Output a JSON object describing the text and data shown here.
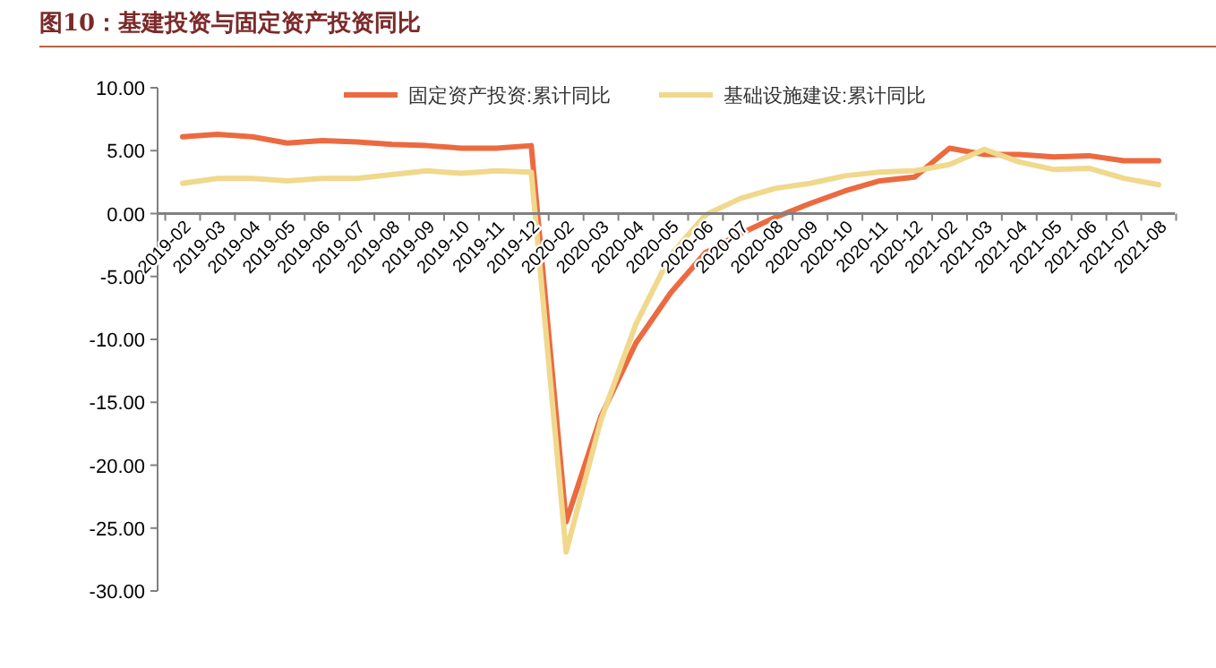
{
  "chart_data": {
    "type": "line",
    "title": "图10：基建投资与固定资产投资同比",
    "categories": [
      "2019-02",
      "2019-03",
      "2019-04",
      "2019-05",
      "2019-06",
      "2019-07",
      "2019-08",
      "2019-09",
      "2019-10",
      "2019-11",
      "2019-12",
      "2020-02",
      "2020-03",
      "2020-04",
      "2020-05",
      "2020-06",
      "2020-07",
      "2020-08",
      "2020-09",
      "2020-10",
      "2020-11",
      "2020-12",
      "2021-02",
      "2021-03",
      "2021-04",
      "2021-05",
      "2021-06",
      "2021-07",
      "2021-08"
    ],
    "series": [
      {
        "name": "固定资产投资:累计同比",
        "color": "#ec6a40",
        "values": [
          6.1,
          6.3,
          6.1,
          5.6,
          5.8,
          5.7,
          5.5,
          5.4,
          5.2,
          5.2,
          5.4,
          -24.5,
          -16.1,
          -10.3,
          -6.3,
          -3.1,
          -1.6,
          -0.3,
          0.8,
          1.8,
          2.6,
          2.9,
          5.2,
          4.7,
          4.7,
          4.5,
          4.6,
          4.2,
          4.2
        ]
      },
      {
        "name": "基础设施建设:累计同比",
        "color": "#f0d88c",
        "values": [
          2.4,
          2.8,
          2.8,
          2.6,
          2.8,
          2.8,
          3.1,
          3.4,
          3.2,
          3.4,
          3.3,
          -26.9,
          -16.4,
          -8.8,
          -3.3,
          -0.1,
          1.2,
          2.0,
          2.4,
          3.0,
          3.3,
          3.4,
          3.9,
          5.1,
          4.1,
          3.5,
          3.6,
          2.8,
          2.3
        ]
      }
    ],
    "ylim": [
      -30,
      10
    ],
    "yticks": [
      {
        "value": -30,
        "label": "-30.00"
      },
      {
        "value": -25,
        "label": "-25.00"
      },
      {
        "value": -20,
        "label": "-20.00"
      },
      {
        "value": -15,
        "label": "-15.00"
      },
      {
        "value": -10,
        "label": "-10.00"
      },
      {
        "value": -5,
        "label": "-5.00"
      },
      {
        "value": 0,
        "label": "0.00"
      },
      {
        "value": 5,
        "label": "5.00"
      },
      {
        "value": 10,
        "label": "10.00"
      }
    ],
    "grid": false,
    "legend": "top",
    "marker": "none",
    "line_style": "solid"
  }
}
